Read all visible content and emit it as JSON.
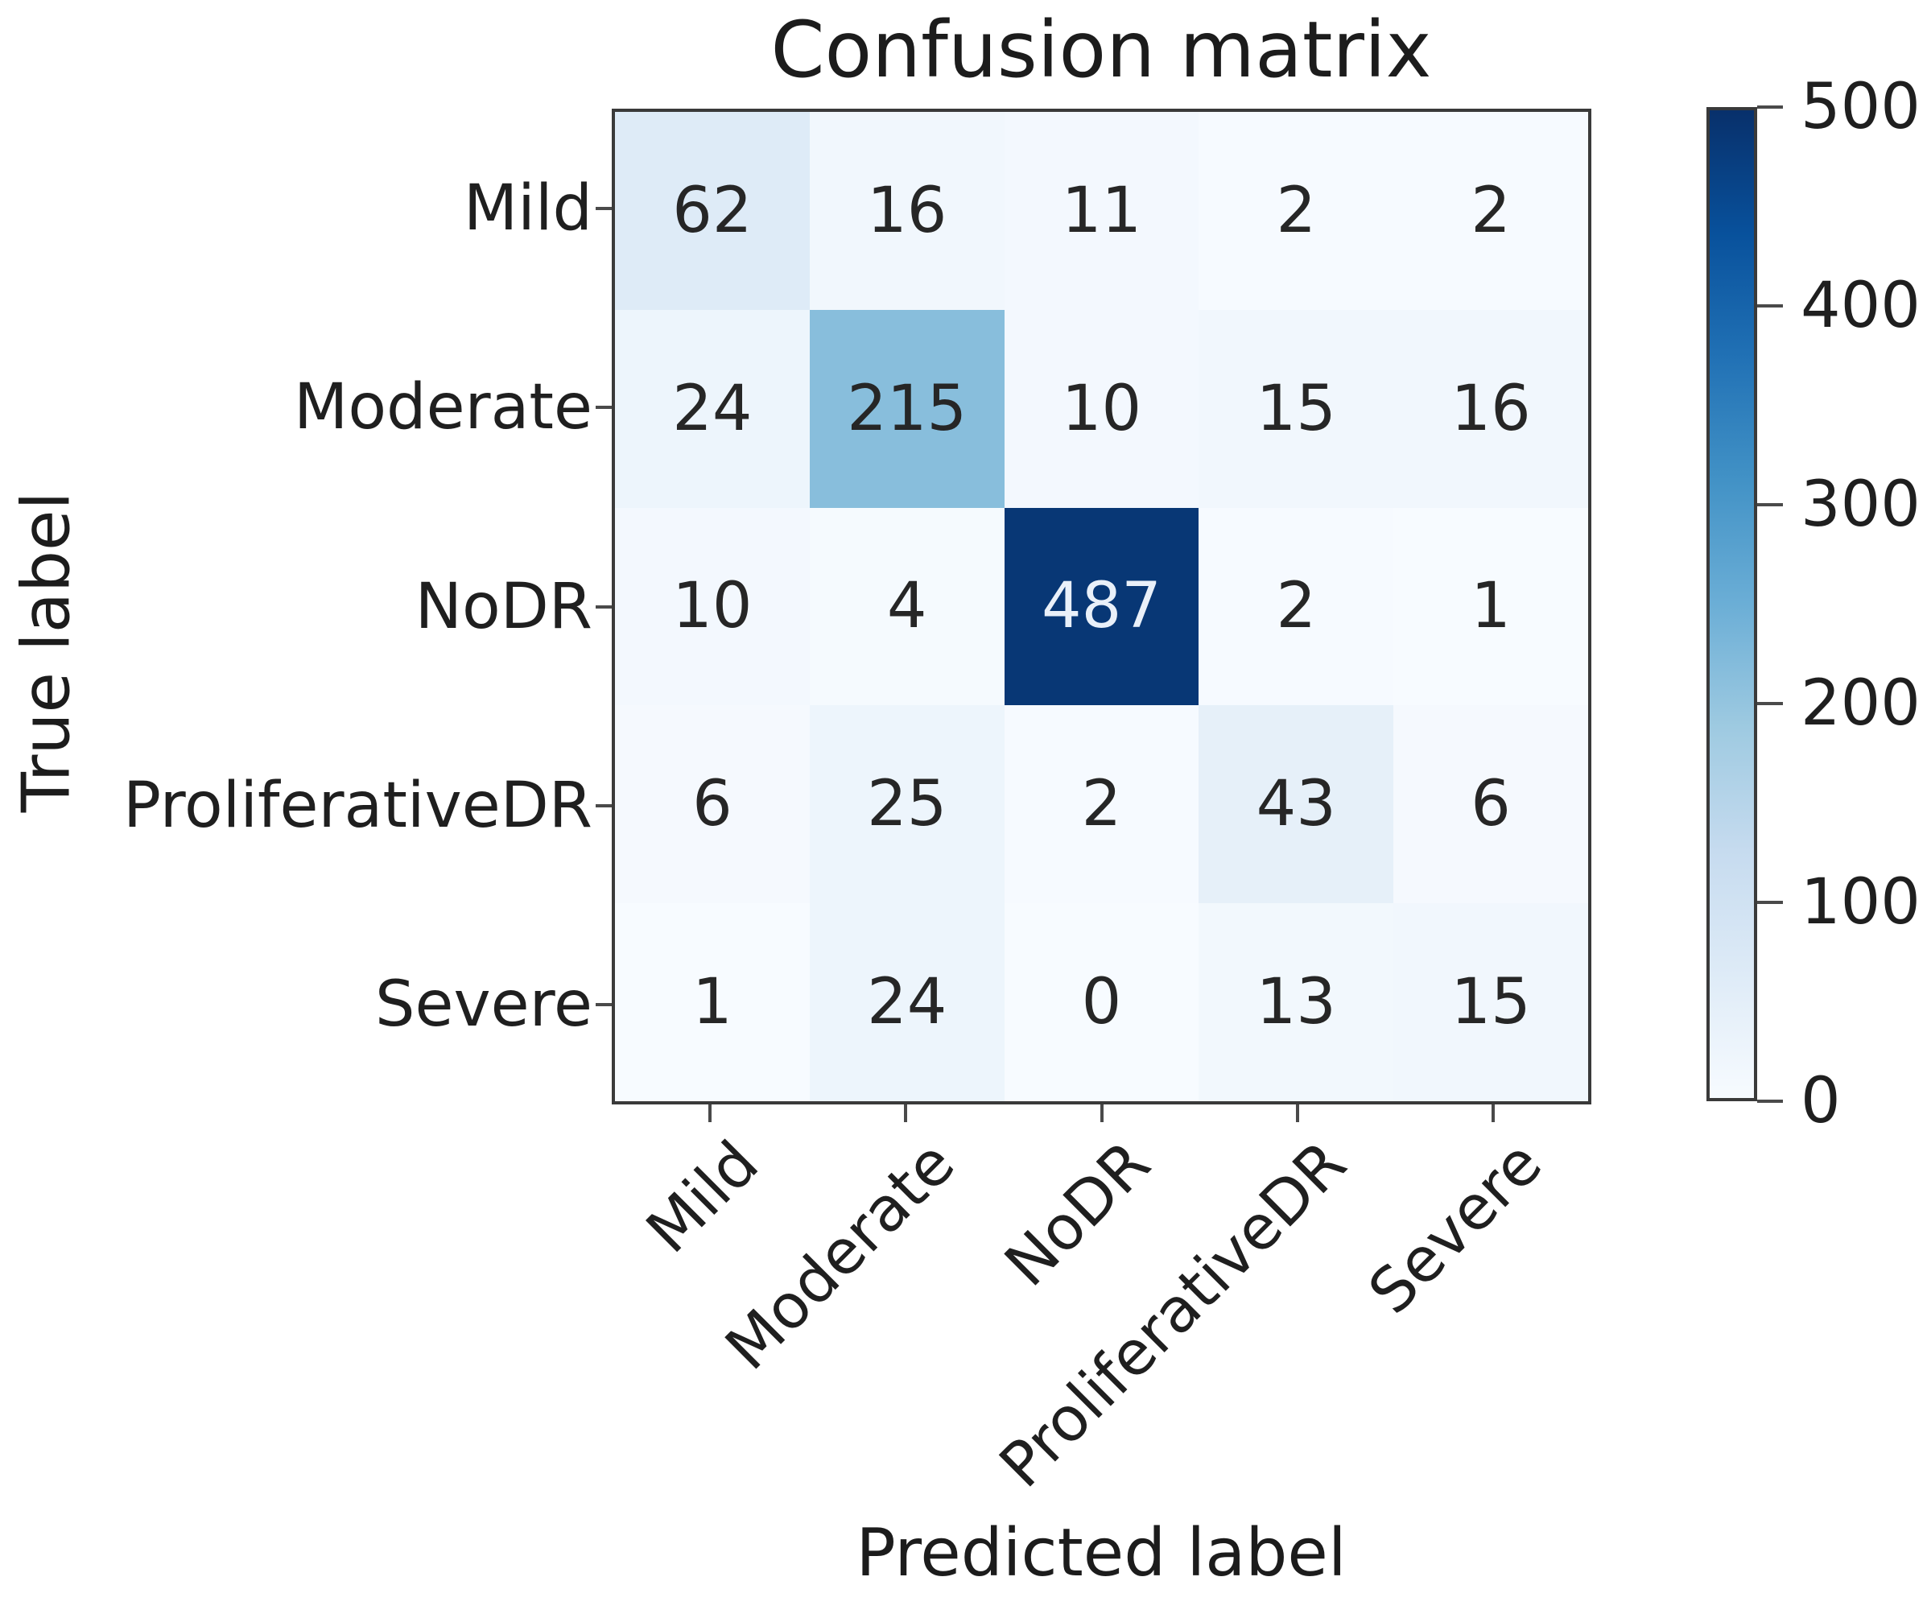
{
  "chart_data": {
    "type": "heatmap",
    "title": "Confusion matrix",
    "xlabel": "Predicted label",
    "ylabel": "True label",
    "x_tick_labels": [
      "Mild",
      "Moderate",
      "NoDR",
      "ProliferativeDR",
      "Severe"
    ],
    "y_tick_labels": [
      "Mild",
      "Moderate",
      "NoDR",
      "ProliferativeDR",
      "Severe"
    ],
    "values": [
      [
        62,
        16,
        11,
        2,
        2
      ],
      [
        24,
        215,
        10,
        15,
        16
      ],
      [
        10,
        4,
        487,
        2,
        1
      ],
      [
        6,
        25,
        2,
        43,
        6
      ],
      [
        1,
        24,
        0,
        13,
        15
      ]
    ],
    "colormap": "Blues",
    "vmin": 0,
    "vmax": 500,
    "colorbar_ticks": [
      0,
      100,
      200,
      300,
      400,
      500
    ],
    "colorbar_position": "right",
    "grid": false
  },
  "colors": {
    "cmap_low": "#f7fbff",
    "cmap_high": "#08306b",
    "axis_border": "#3a3a3a",
    "text_dark": "#262626",
    "text_light": "#e9f0f9"
  }
}
